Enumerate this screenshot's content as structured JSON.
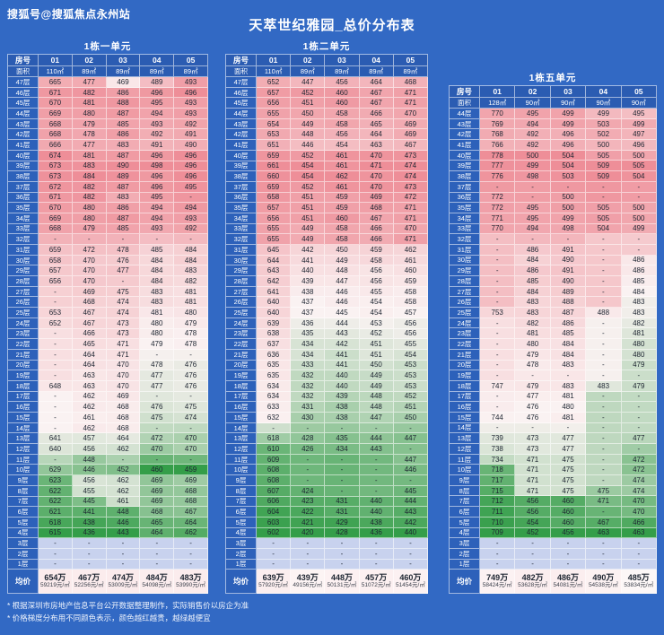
{
  "page": {
    "account": "搜狐号@搜狐焦点永州站",
    "title": "天萃世纪雅园_总价分布表",
    "notes": [
      "* 根据深圳市房地产信息平台公开数据整理制作，实际销售价以房企为准",
      "* 价格梯度分布用不同颜色表示，颜色越红越贵，越绿越便宜"
    ]
  },
  "colors": {
    "background": "#3269c4",
    "header_cell": "#2b5cb2",
    "floor_cell": "#2d61ba",
    "empty_cell": "#c8d2ee",
    "heat_green": "#349e49",
    "heat_mid": "#faf2f2",
    "heat_red": "#ee8e98",
    "text_dark": "#1d2531"
  },
  "chart_data": [
    {
      "type": "heatmap",
      "title": "1栋一单元",
      "row_header": "房号",
      "area_header": "面积",
      "columns": [
        "01",
        "02",
        "03",
        "04",
        "05"
      ],
      "areas": [
        "110㎡",
        "89㎡",
        "89㎡",
        "89㎡",
        "89㎡"
      ],
      "rows": [
        [
          "47层",
          "665",
          "477",
          "469",
          "489",
          "493"
        ],
        [
          "46层",
          "671",
          "482",
          "486",
          "496",
          "496"
        ],
        [
          "45层",
          "670",
          "481",
          "488",
          "495",
          "493"
        ],
        [
          "44层",
          "669",
          "480",
          "487",
          "494",
          "493"
        ],
        [
          "43层",
          "668",
          "479",
          "485",
          "493",
          "492"
        ],
        [
          "42层",
          "668",
          "478",
          "486",
          "492",
          "491"
        ],
        [
          "41层",
          "666",
          "477",
          "483",
          "491",
          "490"
        ],
        [
          "40层",
          "674",
          "481",
          "487",
          "496",
          "496"
        ],
        [
          "39层",
          "673",
          "483",
          "490",
          "498",
          "496"
        ],
        [
          "38层",
          "673",
          "484",
          "489",
          "496",
          "496"
        ],
        [
          "37层",
          "672",
          "482",
          "487",
          "496",
          "495"
        ],
        [
          "36层",
          "671",
          "482",
          "483",
          "495",
          "-"
        ],
        [
          "35层",
          "670",
          "480",
          "486",
          "494",
          "494"
        ],
        [
          "34层",
          "669",
          "480",
          "487",
          "494",
          "493"
        ],
        [
          "33层",
          "668",
          "479",
          "485",
          "493",
          "492"
        ],
        [
          "32层",
          "-",
          "-",
          "-",
          "-",
          "-"
        ],
        [
          "31层",
          "659",
          "472",
          "478",
          "485",
          "484"
        ],
        [
          "30层",
          "658",
          "470",
          "476",
          "484",
          "484"
        ],
        [
          "29层",
          "657",
          "470",
          "477",
          "484",
          "483"
        ],
        [
          "28层",
          "656",
          "470",
          "-",
          "484",
          "482"
        ],
        [
          "27层",
          "-",
          "469",
          "475",
          "483",
          "481"
        ],
        [
          "26层",
          "-",
          "468",
          "474",
          "483",
          "481"
        ],
        [
          "25层",
          "653",
          "467",
          "474",
          "481",
          "480"
        ],
        [
          "24层",
          "652",
          "467",
          "473",
          "480",
          "479"
        ],
        [
          "23层",
          "-",
          "466",
          "473",
          "480",
          "478"
        ],
        [
          "22层",
          "-",
          "465",
          "471",
          "479",
          "478"
        ],
        [
          "21层",
          "-",
          "464",
          "471",
          "-",
          "-"
        ],
        [
          "20层",
          "-",
          "464",
          "470",
          "478",
          "476"
        ],
        [
          "19层",
          "-",
          "463",
          "470",
          "477",
          "476"
        ],
        [
          "18层",
          "648",
          "463",
          "470",
          "477",
          "476"
        ],
        [
          "17层",
          "-",
          "462",
          "469",
          "-",
          "-"
        ],
        [
          "16层",
          "-",
          "462",
          "468",
          "476",
          "475"
        ],
        [
          "15层",
          "-",
          "461",
          "468",
          "475",
          "474"
        ],
        [
          "14层",
          "-",
          "462",
          "468",
          "-",
          "-"
        ],
        [
          "13层",
          "641",
          "457",
          "464",
          "472",
          "470"
        ],
        [
          "12层",
          "640",
          "456",
          "462",
          "470",
          "470"
        ],
        [
          "11层",
          "-",
          "448",
          "-",
          "-",
          "-"
        ],
        [
          "10层",
          "629",
          "446",
          "452",
          "460",
          "459"
        ],
        [
          "9层",
          "623",
          "456",
          "462",
          "469",
          "469"
        ],
        [
          "8层",
          "622",
          "455",
          "462",
          "469",
          "468"
        ],
        [
          "7层",
          "622",
          "445",
          "461",
          "469",
          "468"
        ],
        [
          "6层",
          "621",
          "441",
          "448",
          "468",
          "467"
        ],
        [
          "5层",
          "618",
          "438",
          "446",
          "465",
          "464"
        ],
        [
          "4层",
          "615",
          "436",
          "443",
          "464",
          "462"
        ],
        [
          "3层",
          "-",
          "-",
          "-",
          "-",
          "-"
        ],
        [
          "2层",
          "-",
          "-",
          "-",
          "-",
          "-"
        ],
        [
          "1层",
          "-",
          "-",
          "-",
          "-",
          "-"
        ]
      ],
      "avg_label": "均价",
      "avg_prices": [
        "654万",
        "467万",
        "474万",
        "484万",
        "483万"
      ],
      "avg_unit_prices": [
        "59219元/㎡",
        "52256元/㎡",
        "53009元/㎡",
        "54098元/㎡",
        "53990元/㎡"
      ]
    },
    {
      "type": "heatmap",
      "title": "1栋二单元",
      "row_header": "房号",
      "area_header": "面积",
      "columns": [
        "01",
        "02",
        "03",
        "04",
        "05"
      ],
      "areas": [
        "110㎡",
        "89㎡",
        "89㎡",
        "89㎡",
        "89㎡"
      ],
      "rows": [
        [
          "47层",
          "652",
          "447",
          "456",
          "464",
          "468"
        ],
        [
          "46层",
          "657",
          "452",
          "460",
          "467",
          "471"
        ],
        [
          "45层",
          "656",
          "451",
          "460",
          "467",
          "471"
        ],
        [
          "44层",
          "655",
          "450",
          "458",
          "466",
          "470"
        ],
        [
          "43层",
          "654",
          "449",
          "458",
          "465",
          "469"
        ],
        [
          "42层",
          "653",
          "448",
          "456",
          "464",
          "469"
        ],
        [
          "41层",
          "651",
          "446",
          "454",
          "463",
          "467"
        ],
        [
          "40层",
          "659",
          "452",
          "461",
          "470",
          "473"
        ],
        [
          "39层",
          "661",
          "454",
          "461",
          "471",
          "474"
        ],
        [
          "38层",
          "660",
          "454",
          "462",
          "470",
          "474"
        ],
        [
          "37层",
          "659",
          "452",
          "461",
          "470",
          "473"
        ],
        [
          "36层",
          "658",
          "451",
          "459",
          "469",
          "472"
        ],
        [
          "35层",
          "657",
          "451",
          "459",
          "468",
          "471"
        ],
        [
          "34层",
          "656",
          "451",
          "460",
          "467",
          "471"
        ],
        [
          "33层",
          "655",
          "449",
          "458",
          "466",
          "470"
        ],
        [
          "32层",
          "655",
          "449",
          "458",
          "466",
          "471"
        ],
        [
          "31层",
          "645",
          "442",
          "450",
          "459",
          "462"
        ],
        [
          "30层",
          "644",
          "441",
          "449",
          "458",
          "461"
        ],
        [
          "29层",
          "643",
          "440",
          "448",
          "456",
          "460"
        ],
        [
          "28层",
          "642",
          "439",
          "447",
          "456",
          "459"
        ],
        [
          "27层",
          "641",
          "438",
          "446",
          "455",
          "458"
        ],
        [
          "26层",
          "640",
          "437",
          "446",
          "454",
          "458"
        ],
        [
          "25层",
          "640",
          "437",
          "445",
          "454",
          "457"
        ],
        [
          "24层",
          "639",
          "436",
          "444",
          "453",
          "456"
        ],
        [
          "23层",
          "638",
          "435",
          "443",
          "452",
          "456"
        ],
        [
          "22层",
          "637",
          "434",
          "442",
          "451",
          "455"
        ],
        [
          "21层",
          "636",
          "434",
          "441",
          "451",
          "454"
        ],
        [
          "20层",
          "635",
          "433",
          "441",
          "450",
          "453"
        ],
        [
          "19层",
          "635",
          "432",
          "440",
          "449",
          "453"
        ],
        [
          "18层",
          "634",
          "432",
          "440",
          "449",
          "453"
        ],
        [
          "17层",
          "634",
          "432",
          "439",
          "448",
          "452"
        ],
        [
          "16层",
          "633",
          "431",
          "438",
          "448",
          "451"
        ],
        [
          "15层",
          "632",
          "430",
          "438",
          "447",
          "450"
        ],
        [
          "14层",
          "-",
          "-",
          "-",
          "-",
          "-"
        ],
        [
          "13层",
          "618",
          "428",
          "435",
          "444",
          "447"
        ],
        [
          "12层",
          "610",
          "426",
          "434",
          "443",
          "-"
        ],
        [
          "11层",
          "609",
          "-",
          "-",
          "-",
          "447"
        ],
        [
          "10层",
          "608",
          "-",
          "-",
          "-",
          "446"
        ],
        [
          "9层",
          "608",
          "-",
          "-",
          "-",
          "-"
        ],
        [
          "8层",
          "607",
          "424",
          "-",
          "-",
          "445"
        ],
        [
          "7层",
          "606",
          "423",
          "431",
          "440",
          "444"
        ],
        [
          "6层",
          "604",
          "422",
          "431",
          "440",
          "443"
        ],
        [
          "5层",
          "603",
          "421",
          "429",
          "438",
          "442"
        ],
        [
          "4层",
          "602",
          "420",
          "428",
          "436",
          "440"
        ],
        [
          "3层",
          "-",
          "-",
          "-",
          "-",
          "-"
        ],
        [
          "2层",
          "-",
          "-",
          "-",
          "-",
          "-"
        ],
        [
          "1层",
          "-",
          "-",
          "-",
          "-",
          "-"
        ]
      ],
      "avg_label": "均价",
      "avg_prices": [
        "639万",
        "439万",
        "448万",
        "457万",
        "460万"
      ],
      "avg_unit_prices": [
        "57920元/㎡",
        "49156元/㎡",
        "50131元/㎡",
        "51072元/㎡",
        "51454元/㎡"
      ]
    },
    {
      "type": "heatmap",
      "title": "1栋五单元",
      "row_header": "房号",
      "area_header": "面积",
      "columns": [
        "01",
        "02",
        "03",
        "04",
        "05"
      ],
      "areas": [
        "128㎡",
        "90㎡",
        "90㎡",
        "90㎡",
        "90㎡"
      ],
      "rows": [
        [
          "44层",
          "770",
          "495",
          "499",
          "499",
          "495"
        ],
        [
          "43层",
          "769",
          "494",
          "499",
          "503",
          "499"
        ],
        [
          "42层",
          "768",
          "492",
          "496",
          "502",
          "497"
        ],
        [
          "41层",
          "766",
          "492",
          "496",
          "500",
          "496"
        ],
        [
          "40层",
          "778",
          "500",
          "504",
          "505",
          "500"
        ],
        [
          "39层",
          "777",
          "499",
          "504",
          "509",
          "505"
        ],
        [
          "38层",
          "776",
          "498",
          "503",
          "509",
          "504"
        ],
        [
          "37层",
          "-",
          "-",
          "-",
          "-",
          "-"
        ],
        [
          "36层",
          "772",
          "-",
          "500",
          "-",
          "-"
        ],
        [
          "35层",
          "772",
          "495",
          "500",
          "505",
          "500"
        ],
        [
          "34层",
          "771",
          "495",
          "499",
          "505",
          "500"
        ],
        [
          "33层",
          "770",
          "494",
          "498",
          "504",
          "499"
        ],
        [
          "32层",
          "-",
          "-",
          "-",
          "-",
          "-"
        ],
        [
          "31层",
          "-",
          "486",
          "491",
          "-",
          "-"
        ],
        [
          "30层",
          "-",
          "484",
          "490",
          "-",
          "486"
        ],
        [
          "29层",
          "-",
          "486",
          "491",
          "-",
          "486"
        ],
        [
          "28层",
          "-",
          "485",
          "490",
          "-",
          "485"
        ],
        [
          "27层",
          "-",
          "484",
          "489",
          "-",
          "484"
        ],
        [
          "26层",
          "-",
          "483",
          "488",
          "-",
          "483"
        ],
        [
          "25层",
          "753",
          "483",
          "487",
          "488",
          "483"
        ],
        [
          "24层",
          "-",
          "482",
          "486",
          "-",
          "482"
        ],
        [
          "23层",
          "-",
          "481",
          "485",
          "-",
          "481"
        ],
        [
          "22层",
          "-",
          "480",
          "484",
          "-",
          "480"
        ],
        [
          "21层",
          "-",
          "479",
          "484",
          "-",
          "480"
        ],
        [
          "20层",
          "-",
          "478",
          "483",
          "-",
          "479"
        ],
        [
          "19层",
          "-",
          "-",
          "-",
          "-",
          "-"
        ],
        [
          "18层",
          "747",
          "479",
          "483",
          "483",
          "479"
        ],
        [
          "17层",
          "-",
          "477",
          "481",
          "-",
          "-"
        ],
        [
          "16层",
          "-",
          "476",
          "480",
          "-",
          "-"
        ],
        [
          "15层",
          "744",
          "476",
          "481",
          "-",
          "-"
        ],
        [
          "14层",
          "-",
          "-",
          "-",
          "-",
          "-"
        ],
        [
          "13层",
          "739",
          "473",
          "477",
          "-",
          "477"
        ],
        [
          "12层",
          "738",
          "473",
          "477",
          "-",
          "-"
        ],
        [
          "11层",
          "734",
          "471",
          "475",
          "-",
          "472"
        ],
        [
          "10层",
          "718",
          "471",
          "475",
          "-",
          "472"
        ],
        [
          "9层",
          "717",
          "471",
          "475",
          "-",
          "474"
        ],
        [
          "8层",
          "715",
          "471",
          "475",
          "475",
          "474"
        ],
        [
          "7层",
          "712",
          "456",
          "460",
          "471",
          "470"
        ],
        [
          "6层",
          "711",
          "456",
          "460",
          "-",
          "470"
        ],
        [
          "5层",
          "710",
          "454",
          "460",
          "467",
          "466"
        ],
        [
          "4层",
          "709",
          "452",
          "456",
          "463",
          "463"
        ],
        [
          "3层",
          "-",
          "-",
          "-",
          "-",
          "-"
        ],
        [
          "2层",
          "-",
          "-",
          "-",
          "-",
          "-"
        ],
        [
          "1层",
          "-",
          "-",
          "-",
          "-",
          "-"
        ]
      ],
      "avg_label": "均价",
      "avg_prices": [
        "749万",
        "482万",
        "486万",
        "490万",
        "485万"
      ],
      "avg_unit_prices": [
        "58424元/㎡",
        "53628元/㎡",
        "54081元/㎡",
        "54538元/㎡",
        "53834元/㎡"
      ]
    }
  ]
}
